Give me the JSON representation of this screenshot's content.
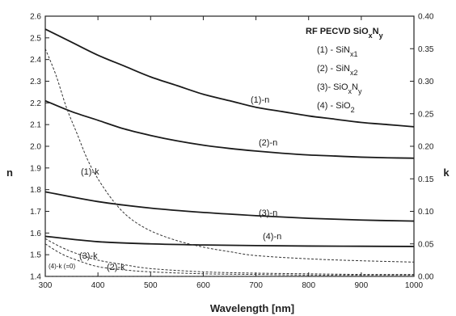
{
  "chart_data": {
    "type": "line",
    "title": "",
    "xlabel": "Wavelength [nm]",
    "ylabel_left": "n",
    "ylabel_right": "k",
    "xlim": [
      300,
      1000
    ],
    "ylim_left": [
      1.4,
      2.6
    ],
    "ylim_right": [
      0.0,
      0.4
    ],
    "x_ticks": [
      300,
      400,
      500,
      600,
      700,
      800,
      900,
      1000
    ],
    "y_left_ticks": [
      "1.4",
      "1.5",
      "1.6",
      "1.7",
      "1.8",
      "1.9",
      "2.0",
      "2.1",
      "2.2",
      "2.3",
      "2.4",
      "2.5",
      "2.6"
    ],
    "y_right_ticks": [
      "0.00",
      "0.05",
      "0.10",
      "0.15",
      "0.20",
      "0.25",
      "0.30",
      "0.35",
      "0.40"
    ],
    "legend": {
      "title": "RF PECVD SiOxNy",
      "items": [
        "(1) - SiNx1",
        "(2) - SiNx2",
        "(3)- SiOxNy",
        "(4) - SiO2"
      ]
    },
    "series": [
      {
        "label": "(1)-n",
        "axis": "left",
        "x": [
          300,
          350,
          400,
          450,
          500,
          550,
          600,
          650,
          700,
          750,
          800,
          850,
          900,
          950,
          1000
        ],
        "y": [
          2.54,
          2.48,
          2.42,
          2.37,
          2.32,
          2.28,
          2.24,
          2.21,
          2.18,
          2.16,
          2.14,
          2.125,
          2.11,
          2.1,
          2.09
        ]
      },
      {
        "label": "(2)-n",
        "axis": "left",
        "x": [
          300,
          350,
          400,
          450,
          500,
          550,
          600,
          650,
          700,
          750,
          800,
          850,
          900,
          950,
          1000
        ],
        "y": [
          2.21,
          2.16,
          2.12,
          2.08,
          2.05,
          2.025,
          2.005,
          1.99,
          1.978,
          1.968,
          1.96,
          1.955,
          1.95,
          1.947,
          1.945
        ]
      },
      {
        "label": "(3)-n",
        "axis": "left",
        "x": [
          300,
          400,
          500,
          600,
          700,
          800,
          900,
          1000
        ],
        "y": [
          1.79,
          1.745,
          1.715,
          1.695,
          1.68,
          1.668,
          1.66,
          1.655
        ]
      },
      {
        "label": "(4)-n",
        "axis": "left",
        "x": [
          300,
          400,
          500,
          600,
          700,
          800,
          900,
          1000
        ],
        "y": [
          1.585,
          1.56,
          1.55,
          1.545,
          1.542,
          1.54,
          1.539,
          1.538
        ]
      },
      {
        "label": "(1)-k",
        "axis": "right",
        "x": [
          300,
          320,
          340,
          360,
          380,
          400,
          430,
          460,
          500,
          550,
          600,
          650,
          700,
          800,
          900,
          1000
        ],
        "y": [
          0.35,
          0.31,
          0.26,
          0.22,
          0.18,
          0.15,
          0.115,
          0.09,
          0.07,
          0.055,
          0.045,
          0.038,
          0.032,
          0.027,
          0.024,
          0.022
        ]
      },
      {
        "label": "(3)-k",
        "axis": "right",
        "x": [
          300,
          330,
          360,
          400,
          450,
          500,
          600,
          700,
          800,
          900,
          1000
        ],
        "y": [
          0.058,
          0.045,
          0.035,
          0.025,
          0.018,
          0.012,
          0.007,
          0.005,
          0.004,
          0.003,
          0.003
        ]
      },
      {
        "label": "(2)-k",
        "axis": "right",
        "x": [
          300,
          330,
          360,
          400,
          450,
          500,
          600,
          700,
          800,
          900,
          1000
        ],
        "y": [
          0.05,
          0.035,
          0.025,
          0.015,
          0.01,
          0.007,
          0.004,
          0.003,
          0.002,
          0.002,
          0.002
        ]
      },
      {
        "label": "(4)-k (=0)",
        "axis": "right",
        "x": [
          300,
          1000
        ],
        "y": [
          0,
          0
        ]
      }
    ]
  }
}
